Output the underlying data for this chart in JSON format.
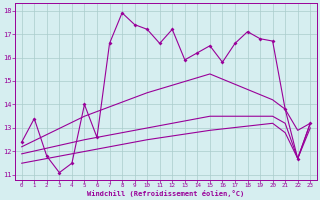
{
  "xlabel": "Windchill (Refroidissement éolien,°C)",
  "bg_color": "#d6eef0",
  "line_color": "#990099",
  "grid_color": "#aacccc",
  "xlim": [
    -0.5,
    23.5
  ],
  "ylim": [
    10.8,
    18.3
  ],
  "xticks": [
    0,
    1,
    2,
    3,
    4,
    5,
    6,
    7,
    8,
    9,
    10,
    11,
    12,
    13,
    14,
    15,
    16,
    17,
    18,
    19,
    20,
    21,
    22,
    23
  ],
  "yticks": [
    11,
    12,
    13,
    14,
    15,
    16,
    17,
    18
  ],
  "line1_x": [
    0,
    1,
    2,
    3,
    4,
    5,
    6,
    7,
    8,
    9,
    10,
    11,
    12,
    13,
    14,
    15,
    16,
    17,
    18,
    19,
    20,
    21,
    22,
    23
  ],
  "line1_y": [
    12.4,
    13.4,
    11.8,
    11.1,
    11.5,
    14.0,
    12.6,
    16.6,
    17.9,
    17.4,
    17.2,
    16.6,
    17.2,
    15.9,
    16.2,
    16.5,
    15.8,
    16.6,
    17.1,
    16.8,
    16.7,
    13.8,
    11.7,
    13.2
  ],
  "line2_x": [
    0,
    5,
    10,
    15,
    20,
    21,
    22,
    23
  ],
  "line2_y": [
    12.2,
    13.5,
    14.5,
    15.3,
    14.2,
    13.8,
    12.9,
    13.2
  ],
  "line3_x": [
    0,
    5,
    10,
    15,
    20,
    21,
    22,
    23
  ],
  "line3_y": [
    11.9,
    12.5,
    13.0,
    13.5,
    13.5,
    13.2,
    11.7,
    13.2
  ],
  "line4_x": [
    0,
    5,
    10,
    15,
    20,
    21,
    22,
    23
  ],
  "line4_y": [
    11.5,
    12.0,
    12.5,
    12.9,
    13.2,
    12.8,
    11.7,
    13.0
  ]
}
